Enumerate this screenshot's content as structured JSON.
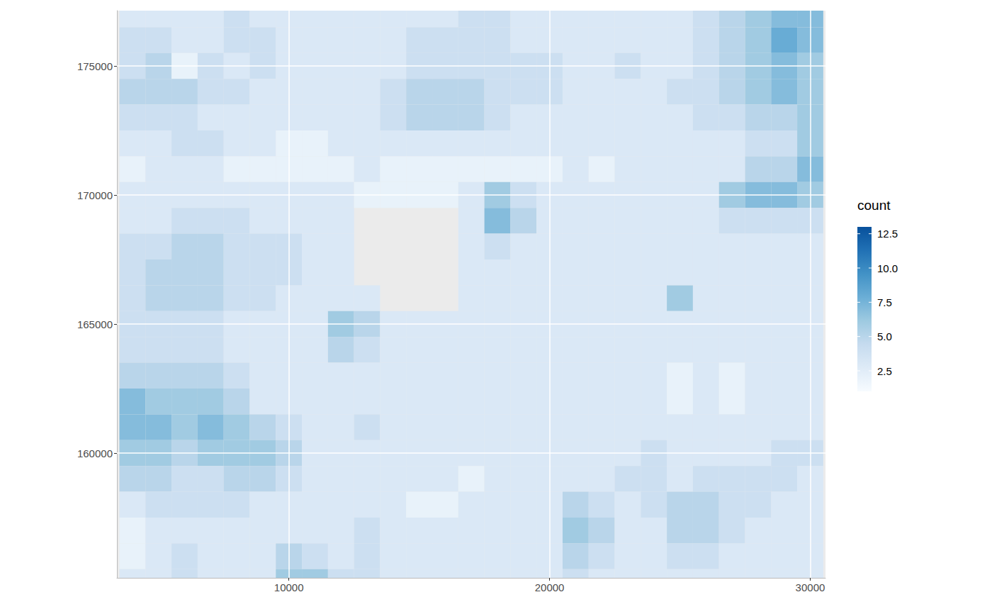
{
  "chart_data": {
    "type": "heatmap",
    "xlim": [
      3404,
      30585
    ],
    "ylim": [
      155165,
      177143
    ],
    "xticks": [
      10000,
      20000,
      30000
    ],
    "yticks": [
      160000,
      165000,
      170000,
      175000
    ],
    "grid": true,
    "bin_width": 1000,
    "x": [
      4000,
      5000,
      6000,
      7000,
      8000,
      9000,
      10000,
      11000,
      12000,
      13000,
      14000,
      15000,
      16000,
      17000,
      18000,
      19000,
      20000,
      21000,
      22000,
      23000,
      24000,
      25000,
      26000,
      27000,
      28000,
      29000,
      30000
    ],
    "y": [
      177000,
      176000,
      175000,
      174000,
      173000,
      172000,
      171000,
      170000,
      169000,
      168000,
      167000,
      166000,
      165000,
      164000,
      163000,
      162000,
      161000,
      160000,
      159000,
      158000,
      157000,
      156000,
      155000
    ],
    "values": [
      [
        3,
        3,
        3,
        3,
        4,
        3,
        3,
        3,
        3,
        3,
        3,
        3,
        3,
        4,
        4,
        3,
        3,
        3,
        3,
        3,
        3,
        3,
        4,
        5,
        6,
        7,
        7
      ],
      [
        4,
        4,
        3,
        3,
        4,
        4,
        3,
        3,
        3,
        3,
        3,
        4,
        4,
        4,
        4,
        3,
        3,
        3,
        3,
        3,
        3,
        3,
        4,
        5,
        6,
        8,
        7
      ],
      [
        4,
        5,
        2,
        4,
        3,
        4,
        3,
        3,
        3,
        3,
        3,
        4,
        4,
        4,
        4,
        4,
        4,
        3,
        3,
        4,
        3,
        3,
        4,
        5,
        6,
        7,
        6
      ],
      [
        5,
        5,
        5,
        4,
        4,
        3,
        3,
        3,
        3,
        3,
        4,
        5,
        5,
        5,
        4,
        4,
        4,
        3,
        3,
        3,
        3,
        4,
        4,
        5,
        6,
        7,
        6
      ],
      [
        4,
        4,
        4,
        3,
        3,
        3,
        3,
        3,
        3,
        3,
        4,
        5,
        5,
        5,
        4,
        3,
        3,
        3,
        3,
        3,
        3,
        3,
        4,
        4,
        5,
        5,
        6
      ],
      [
        3,
        3,
        4,
        4,
        3,
        3,
        2,
        2,
        3,
        3,
        3,
        3,
        3,
        3,
        3,
        3,
        3,
        3,
        3,
        3,
        3,
        3,
        3,
        3,
        4,
        4,
        6
      ],
      [
        2,
        3,
        3,
        3,
        2,
        2,
        2,
        2,
        2,
        3,
        2,
        2,
        2,
        2,
        2,
        2,
        2,
        3,
        2,
        3,
        3,
        3,
        3,
        3,
        5,
        5,
        7
      ],
      [
        3,
        3,
        3,
        3,
        3,
        3,
        3,
        3,
        3,
        2,
        2,
        2,
        2,
        3,
        6,
        4,
        3,
        3,
        3,
        3,
        3,
        3,
        3,
        6,
        7,
        7,
        6
      ],
      [
        3,
        3,
        4,
        4,
        4,
        3,
        3,
        3,
        3,
        null,
        null,
        null,
        null,
        3,
        7,
        5,
        3,
        3,
        3,
        3,
        3,
        3,
        3,
        4,
        4,
        4,
        4
      ],
      [
        4,
        4,
        5,
        5,
        4,
        4,
        4,
        3,
        3,
        null,
        null,
        null,
        null,
        3,
        4,
        3,
        3,
        3,
        3,
        3,
        3,
        3,
        3,
        3,
        3,
        3,
        3
      ],
      [
        4,
        5,
        5,
        5,
        4,
        4,
        4,
        3,
        3,
        null,
        null,
        null,
        null,
        3,
        3,
        3,
        3,
        3,
        3,
        3,
        3,
        3,
        3,
        3,
        3,
        3,
        3
      ],
      [
        4,
        5,
        5,
        5,
        4,
        4,
        3,
        3,
        3,
        3,
        null,
        null,
        null,
        3,
        3,
        3,
        3,
        3,
        3,
        3,
        3,
        6,
        3,
        3,
        3,
        3,
        3
      ],
      [
        4,
        4,
        4,
        4,
        3,
        3,
        3,
        3,
        6,
        5,
        3,
        3,
        3,
        3,
        3,
        3,
        3,
        3,
        3,
        3,
        3,
        3,
        3,
        3,
        3,
        3,
        3
      ],
      [
        4,
        4,
        4,
        4,
        3,
        3,
        3,
        3,
        5,
        4,
        3,
        3,
        3,
        3,
        3,
        3,
        3,
        3,
        3,
        3,
        3,
        3,
        3,
        3,
        3,
        3,
        3
      ],
      [
        5,
        5,
        5,
        5,
        4,
        3,
        3,
        3,
        3,
        3,
        3,
        3,
        3,
        3,
        3,
        3,
        3,
        3,
        3,
        3,
        3,
        2,
        3,
        2,
        3,
        3,
        3
      ],
      [
        7,
        6,
        6,
        6,
        5,
        3,
        3,
        3,
        3,
        3,
        3,
        3,
        3,
        3,
        3,
        3,
        3,
        3,
        3,
        3,
        3,
        2,
        3,
        2,
        3,
        3,
        3
      ],
      [
        7,
        7,
        6,
        7,
        6,
        5,
        4,
        3,
        3,
        4,
        3,
        3,
        3,
        3,
        3,
        3,
        3,
        3,
        3,
        3,
        3,
        3,
        3,
        3,
        3,
        3,
        3
      ],
      [
        6,
        6,
        5,
        6,
        6,
        6,
        5,
        3,
        3,
        3,
        3,
        3,
        3,
        3,
        3,
        3,
        3,
        3,
        3,
        3,
        4,
        3,
        3,
        3,
        3,
        4,
        4
      ],
      [
        5,
        5,
        4,
        4,
        5,
        5,
        4,
        3,
        3,
        3,
        3,
        3,
        3,
        2,
        3,
        3,
        3,
        3,
        3,
        4,
        4,
        3,
        4,
        4,
        4,
        4,
        3
      ],
      [
        3,
        4,
        4,
        4,
        4,
        3,
        3,
        3,
        3,
        3,
        3,
        2,
        2,
        3,
        3,
        3,
        3,
        5,
        4,
        3,
        4,
        5,
        5,
        4,
        4,
        3,
        3
      ],
      [
        2,
        3,
        3,
        3,
        3,
        3,
        3,
        3,
        3,
        4,
        3,
        3,
        3,
        3,
        3,
        3,
        3,
        6,
        5,
        3,
        3,
        5,
        5,
        4,
        3,
        3,
        3
      ],
      [
        2,
        3,
        4,
        3,
        3,
        3,
        5,
        4,
        3,
        4,
        3,
        3,
        3,
        3,
        3,
        3,
        3,
        5,
        4,
        3,
        3,
        4,
        4,
        3,
        3,
        3,
        3
      ],
      [
        3,
        3,
        4,
        3,
        3,
        3,
        6,
        6,
        4,
        4,
        3,
        3,
        3,
        3,
        3,
        3,
        3,
        4,
        3,
        3,
        3,
        3,
        3,
        3,
        3,
        3,
        3
      ]
    ],
    "colorbar": {
      "title": "count",
      "lim": [
        1,
        13
      ],
      "ticks": [
        2.5,
        {
          "value": 5,
          "label": "5.0"
        },
        7.5,
        {
          "value": 10,
          "label": "10.0"
        },
        12.5
      ]
    }
  }
}
